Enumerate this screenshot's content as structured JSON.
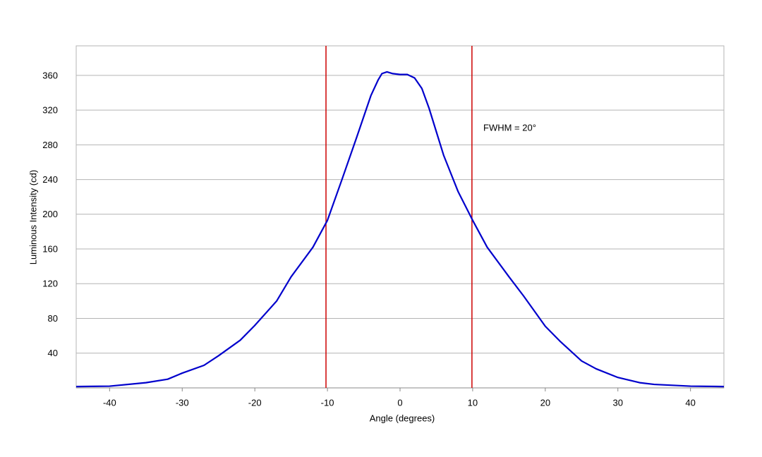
{
  "chart_data": {
    "type": "line",
    "x_label": "Angle (degrees)",
    "y_label": "Luminous Intensity (cd)",
    "annotation": "FWHM = 20°",
    "x": [
      -44.6,
      -40,
      -35,
      -32,
      -30,
      -27,
      -25,
      -22,
      -20,
      -17,
      -15,
      -12,
      -10,
      -8,
      -6,
      -4,
      -3,
      -2.5,
      -1.8,
      -1,
      0,
      1,
      2,
      3,
      4,
      5,
      6,
      8,
      10,
      12,
      15,
      17,
      20,
      22,
      25,
      27,
      30,
      33,
      35,
      40,
      44.6
    ],
    "series": [
      {
        "name": "Luminous Intensity",
        "color": "#0000cc",
        "values": [
          1.5,
          2,
          6,
          10,
          17,
          26,
          37,
          55,
          72,
          100,
          128,
          162,
          193,
          240,
          288,
          337,
          355,
          362,
          364,
          362,
          361,
          361,
          357,
          345,
          322,
          295,
          268,
          226,
          193,
          162,
          128,
          106,
          71,
          54,
          31,
          22,
          12,
          6,
          4,
          2,
          1.5
        ]
      }
    ],
    "vlines": [
      -10.2,
      9.9
    ],
    "vline_color": "#cc0000",
    "xlim": [
      -44.6,
      44.6
    ],
    "xticks": [
      -40,
      -30,
      -20,
      -10,
      0,
      10,
      20,
      30,
      40
    ],
    "ylim": [
      0,
      394
    ],
    "yticks": [
      40,
      80,
      120,
      160,
      200,
      240,
      280,
      320,
      360
    ],
    "grid": true
  }
}
